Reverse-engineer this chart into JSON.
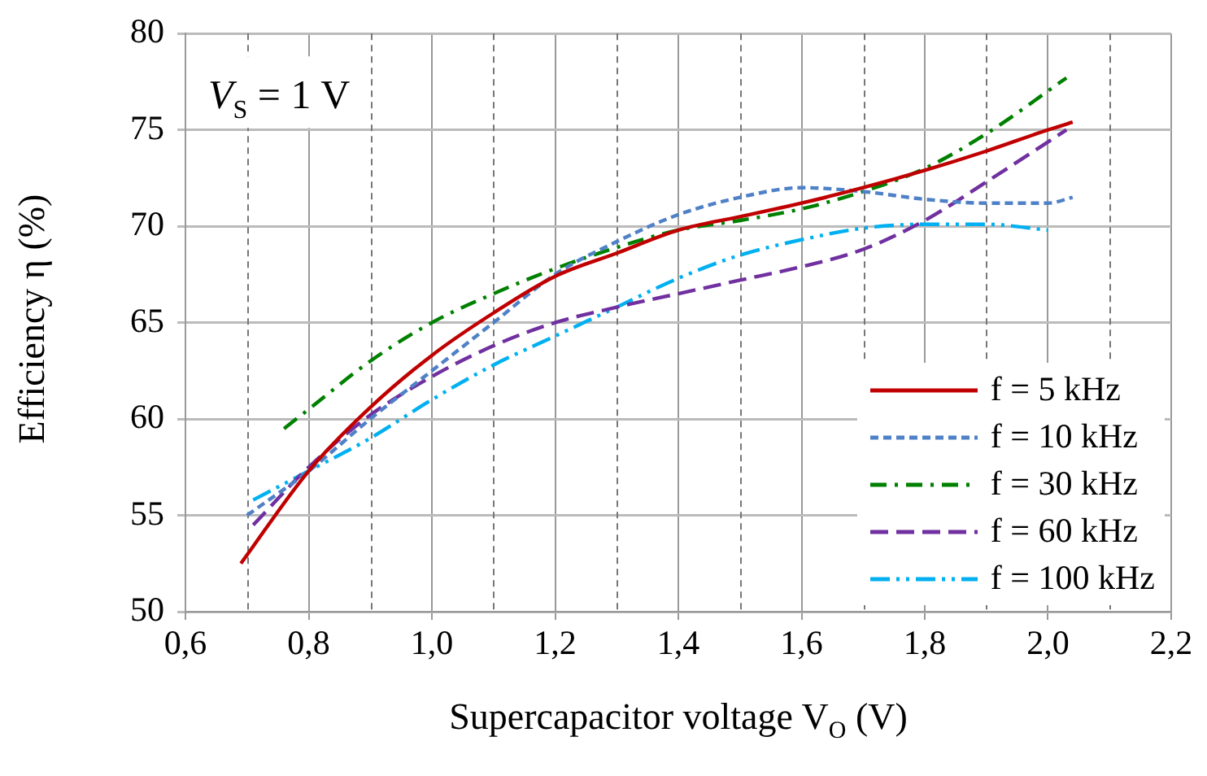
{
  "chart_data": {
    "type": "line",
    "xlabel": "Supercapacitor voltage V$_{O}$ (V)",
    "ylabel": "Efficiency η (%)",
    "annotations": [
      "V$_{S}$ = 1 V"
    ],
    "series": [
      {
        "name": "f = 5 kHz",
        "color": "#c00000",
        "line_style": "solid",
        "x": [
          0.69,
          0.8,
          0.9,
          1.0,
          1.1,
          1.2,
          1.3,
          1.4,
          1.5,
          1.6,
          1.7,
          1.8,
          1.9,
          2.0,
          2.04
        ],
        "values": [
          52.5,
          57.3,
          60.6,
          63.3,
          65.5,
          67.4,
          68.6,
          69.8,
          70.5,
          71.2,
          72.0,
          72.9,
          73.9,
          75.0,
          75.4
        ]
      },
      {
        "name": "f = 10 kHz",
        "color": "#4f81c7",
        "line_style": "dotted",
        "x": [
          0.7,
          0.8,
          0.9,
          1.0,
          1.1,
          1.2,
          1.3,
          1.4,
          1.5,
          1.6,
          1.7,
          1.8,
          1.9,
          2.0,
          2.04
        ],
        "values": [
          55.0,
          57.3,
          60.0,
          62.5,
          65.0,
          67.5,
          69.2,
          70.6,
          71.5,
          72.0,
          71.8,
          71.4,
          71.2,
          71.2,
          71.5
        ]
      },
      {
        "name": "f = 30 kHz",
        "color": "#008000",
        "line_style": "dashdot",
        "x": [
          0.76,
          0.8,
          0.9,
          1.0,
          1.1,
          1.2,
          1.3,
          1.4,
          1.5,
          1.6,
          1.7,
          1.8,
          1.9,
          2.03
        ],
        "values": [
          59.5,
          60.5,
          63.0,
          65.0,
          66.5,
          67.8,
          68.9,
          69.8,
          70.3,
          70.9,
          71.8,
          73.0,
          74.8,
          77.7
        ]
      },
      {
        "name": "f = 60 kHz",
        "color": "#7030a0",
        "line_style": "dashed",
        "x": [
          0.71,
          0.8,
          0.9,
          1.0,
          1.1,
          1.2,
          1.3,
          1.4,
          1.5,
          1.6,
          1.7,
          1.8,
          1.9,
          2.03
        ],
        "values": [
          54.5,
          57.5,
          60.2,
          62.2,
          63.8,
          65.0,
          65.8,
          66.5,
          67.2,
          67.9,
          68.8,
          70.3,
          72.3,
          75.0
        ]
      },
      {
        "name": "f = 100 kHz",
        "color": "#00b0f0",
        "line_style": "dashdotdot",
        "x": [
          0.71,
          0.8,
          0.9,
          1.0,
          1.1,
          1.2,
          1.3,
          1.4,
          1.5,
          1.6,
          1.7,
          1.8,
          1.9,
          2.0
        ],
        "values": [
          55.8,
          57.3,
          59.0,
          61.0,
          62.8,
          64.3,
          65.8,
          67.3,
          68.5,
          69.3,
          69.9,
          70.1,
          70.1,
          69.8
        ]
      }
    ],
    "xlim": [
      0.6,
      2.2
    ],
    "xticks": [
      {
        "value": 0.6,
        "label": "0,6"
      },
      {
        "value": 0.7,
        "label": null
      },
      {
        "value": 0.8,
        "label": "0,8"
      },
      {
        "value": 0.9,
        "label": null
      },
      {
        "value": 1.0,
        "label": "1,0"
      },
      {
        "value": 1.1,
        "label": null
      },
      {
        "value": 1.2,
        "label": "1,2"
      },
      {
        "value": 1.3,
        "label": null
      },
      {
        "value": 1.4,
        "label": "1,4"
      },
      {
        "value": 1.5,
        "label": null
      },
      {
        "value": 1.6,
        "label": "1,6"
      },
      {
        "value": 1.7,
        "label": null
      },
      {
        "value": 1.8,
        "label": "1,8"
      },
      {
        "value": 1.9,
        "label": null
      },
      {
        "value": 2.0,
        "label": "2,0"
      },
      {
        "value": 2.1,
        "label": null
      },
      {
        "value": 2.2,
        "label": "2,2"
      }
    ],
    "ylim": [
      50,
      80
    ],
    "yticks": [
      50,
      55,
      60,
      65,
      70,
      75,
      80
    ],
    "grid": true,
    "legend": "bottom right",
    "marker": "none"
  }
}
